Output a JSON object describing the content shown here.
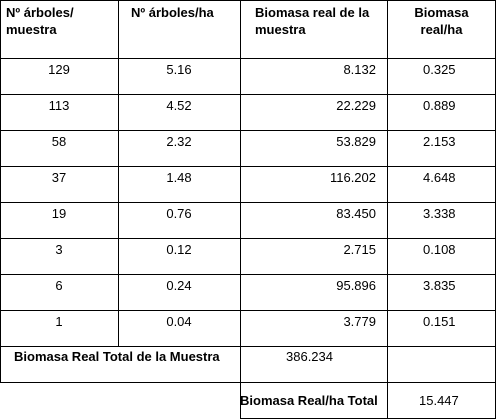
{
  "table": {
    "headers": [
      "Nº árboles/\nmuestra",
      "Nº árboles/ha",
      "Biomasa real de la\nmuestra",
      "Biomasa\nreal/ha"
    ],
    "rows": [
      [
        "129",
        "5.16",
        "8.132",
        "0.325"
      ],
      [
        "113",
        "4.52",
        "22.229",
        "0.889"
      ],
      [
        "58",
        "2.32",
        "53.829",
        "2.153"
      ],
      [
        "37",
        "1.48",
        "116.202",
        "4.648"
      ],
      [
        "19",
        "0.76",
        "83.450",
        "3.338"
      ],
      [
        "3",
        "0.12",
        "2.715",
        "0.108"
      ],
      [
        "6",
        "0.24",
        "95.896",
        "3.835"
      ],
      [
        "1",
        "0.04",
        "3.779",
        "0.151"
      ]
    ],
    "total_muestra_label": "Biomasa Real Total de la Muestra",
    "total_muestra_value": "386.234",
    "total_ha_label": "Biomasa Real/ha Total",
    "total_ha_value": "15.447"
  }
}
